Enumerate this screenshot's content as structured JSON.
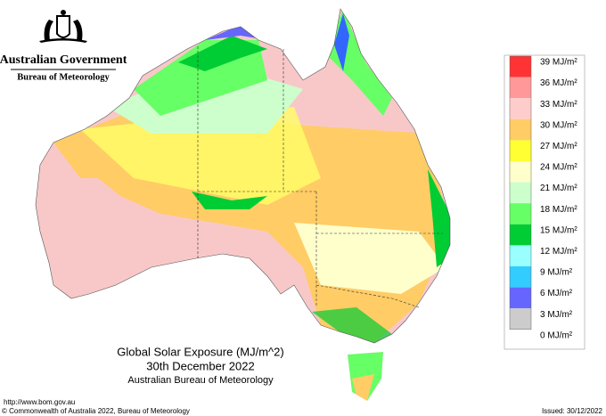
{
  "header": {
    "government": "Australian Government",
    "agency": "Bureau of Meteorology"
  },
  "legend": {
    "items": [
      {
        "label": "39 MJ/m²",
        "color": "#ff3333"
      },
      {
        "label": "36 MJ/m²",
        "color": "#ff9999"
      },
      {
        "label": "33 MJ/m²",
        "color": "#ffcccc"
      },
      {
        "label": "30 MJ/m²",
        "color": "#ffcc66"
      },
      {
        "label": "27 MJ/m²",
        "color": "#ffff33"
      },
      {
        "label": "24 MJ/m²",
        "color": "#ffffcc"
      },
      {
        "label": "21 MJ/m²",
        "color": "#ccffcc"
      },
      {
        "label": "18 MJ/m²",
        "color": "#66ff66"
      },
      {
        "label": "15 MJ/m²",
        "color": "#00cc33"
      },
      {
        "label": "12 MJ/m²",
        "color": "#99ffff"
      },
      {
        "label": "9 MJ/m²",
        "color": "#33ccff"
      },
      {
        "label": "6 MJ/m²",
        "color": "#6666ff"
      },
      {
        "label": "3 MJ/m²",
        "color": "#cccccc"
      },
      {
        "label": "0 MJ/m²",
        "color": null
      }
    ]
  },
  "title": {
    "line1": "Global Solar Exposure (MJ/m^2)",
    "line2": "30th December 2022",
    "line3": "Australian Bureau of Meteorology"
  },
  "footer": {
    "url": "http://www.bom.gov.au",
    "copyright": "© Commonwealth of Australia 2022, Bureau of Meteorology",
    "issued": "Issued: 30/12/2022"
  }
}
